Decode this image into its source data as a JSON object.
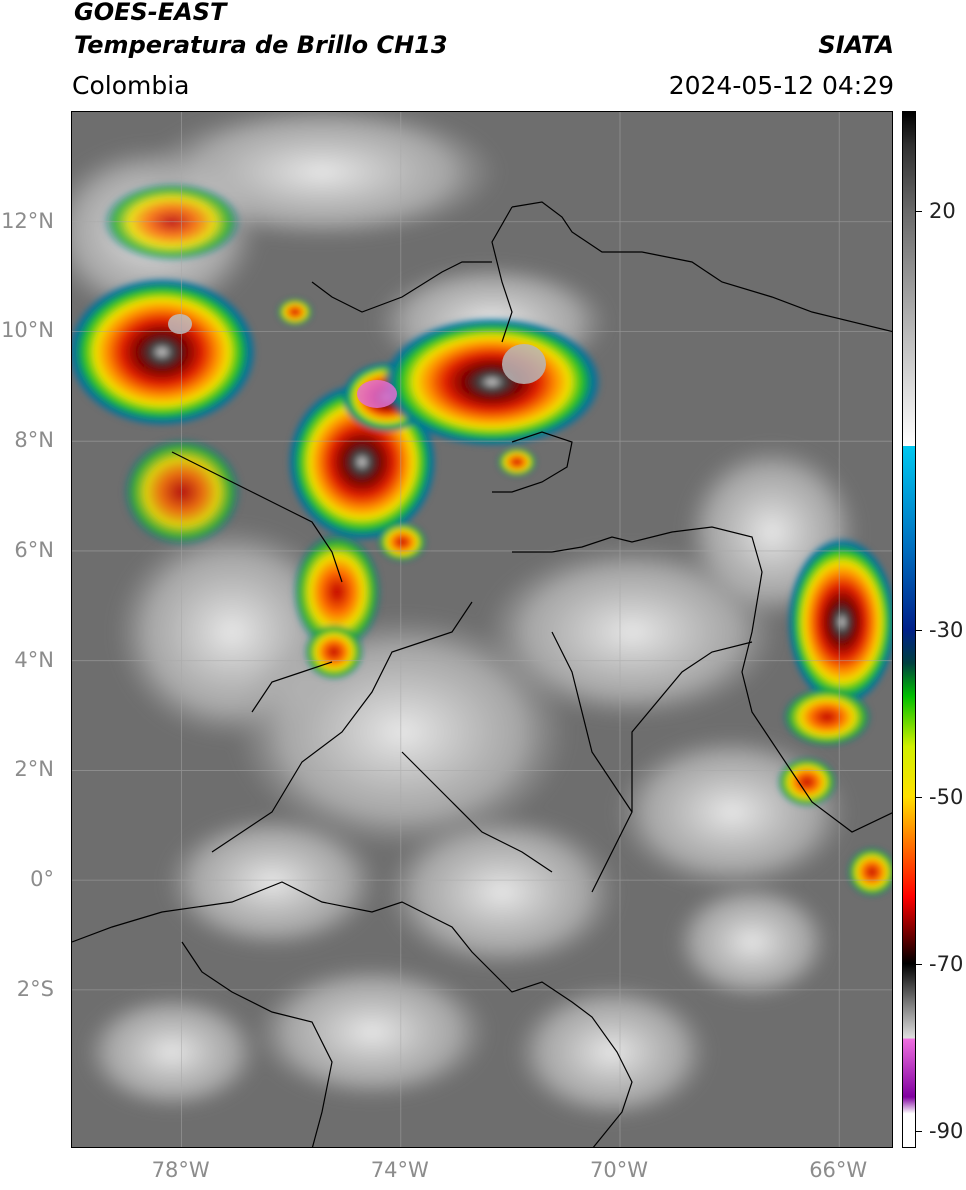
{
  "header": {
    "satellite": "GOES-EAST",
    "product": "Temperatura de Brillo CH13",
    "organization": "SIATA",
    "region": "Colombia",
    "datetime": "2024-05-12 04:29"
  },
  "map": {
    "lat_range": [
      -4.9,
      14.0
    ],
    "lon_range": [
      -80.0,
      -65.0
    ],
    "lat_ticks": [
      {
        "value": 12,
        "label": "12°N"
      },
      {
        "value": 10,
        "label": "10°N"
      },
      {
        "value": 8,
        "label": "8°N"
      },
      {
        "value": 6,
        "label": "6°N"
      },
      {
        "value": 4,
        "label": "4°N"
      },
      {
        "value": 2,
        "label": "2°N"
      },
      {
        "value": 0,
        "label": "0°"
      },
      {
        "value": -2,
        "label": "2°S"
      }
    ],
    "lon_ticks": [
      {
        "value": -78,
        "label": "78°W"
      },
      {
        "value": -74,
        "label": "74°W"
      },
      {
        "value": -70,
        "label": "70°W"
      },
      {
        "value": -66,
        "label": "66°W"
      }
    ],
    "gridlines": true
  },
  "colorbar": {
    "range": [
      -92,
      32
    ],
    "ticks": [
      {
        "value": 20,
        "label": "20"
      },
      {
        "value": -30,
        "label": "-30"
      },
      {
        "value": -50,
        "label": "-50"
      },
      {
        "value": -70,
        "label": "-70"
      },
      {
        "value": -90,
        "label": "-90"
      }
    ]
  }
}
